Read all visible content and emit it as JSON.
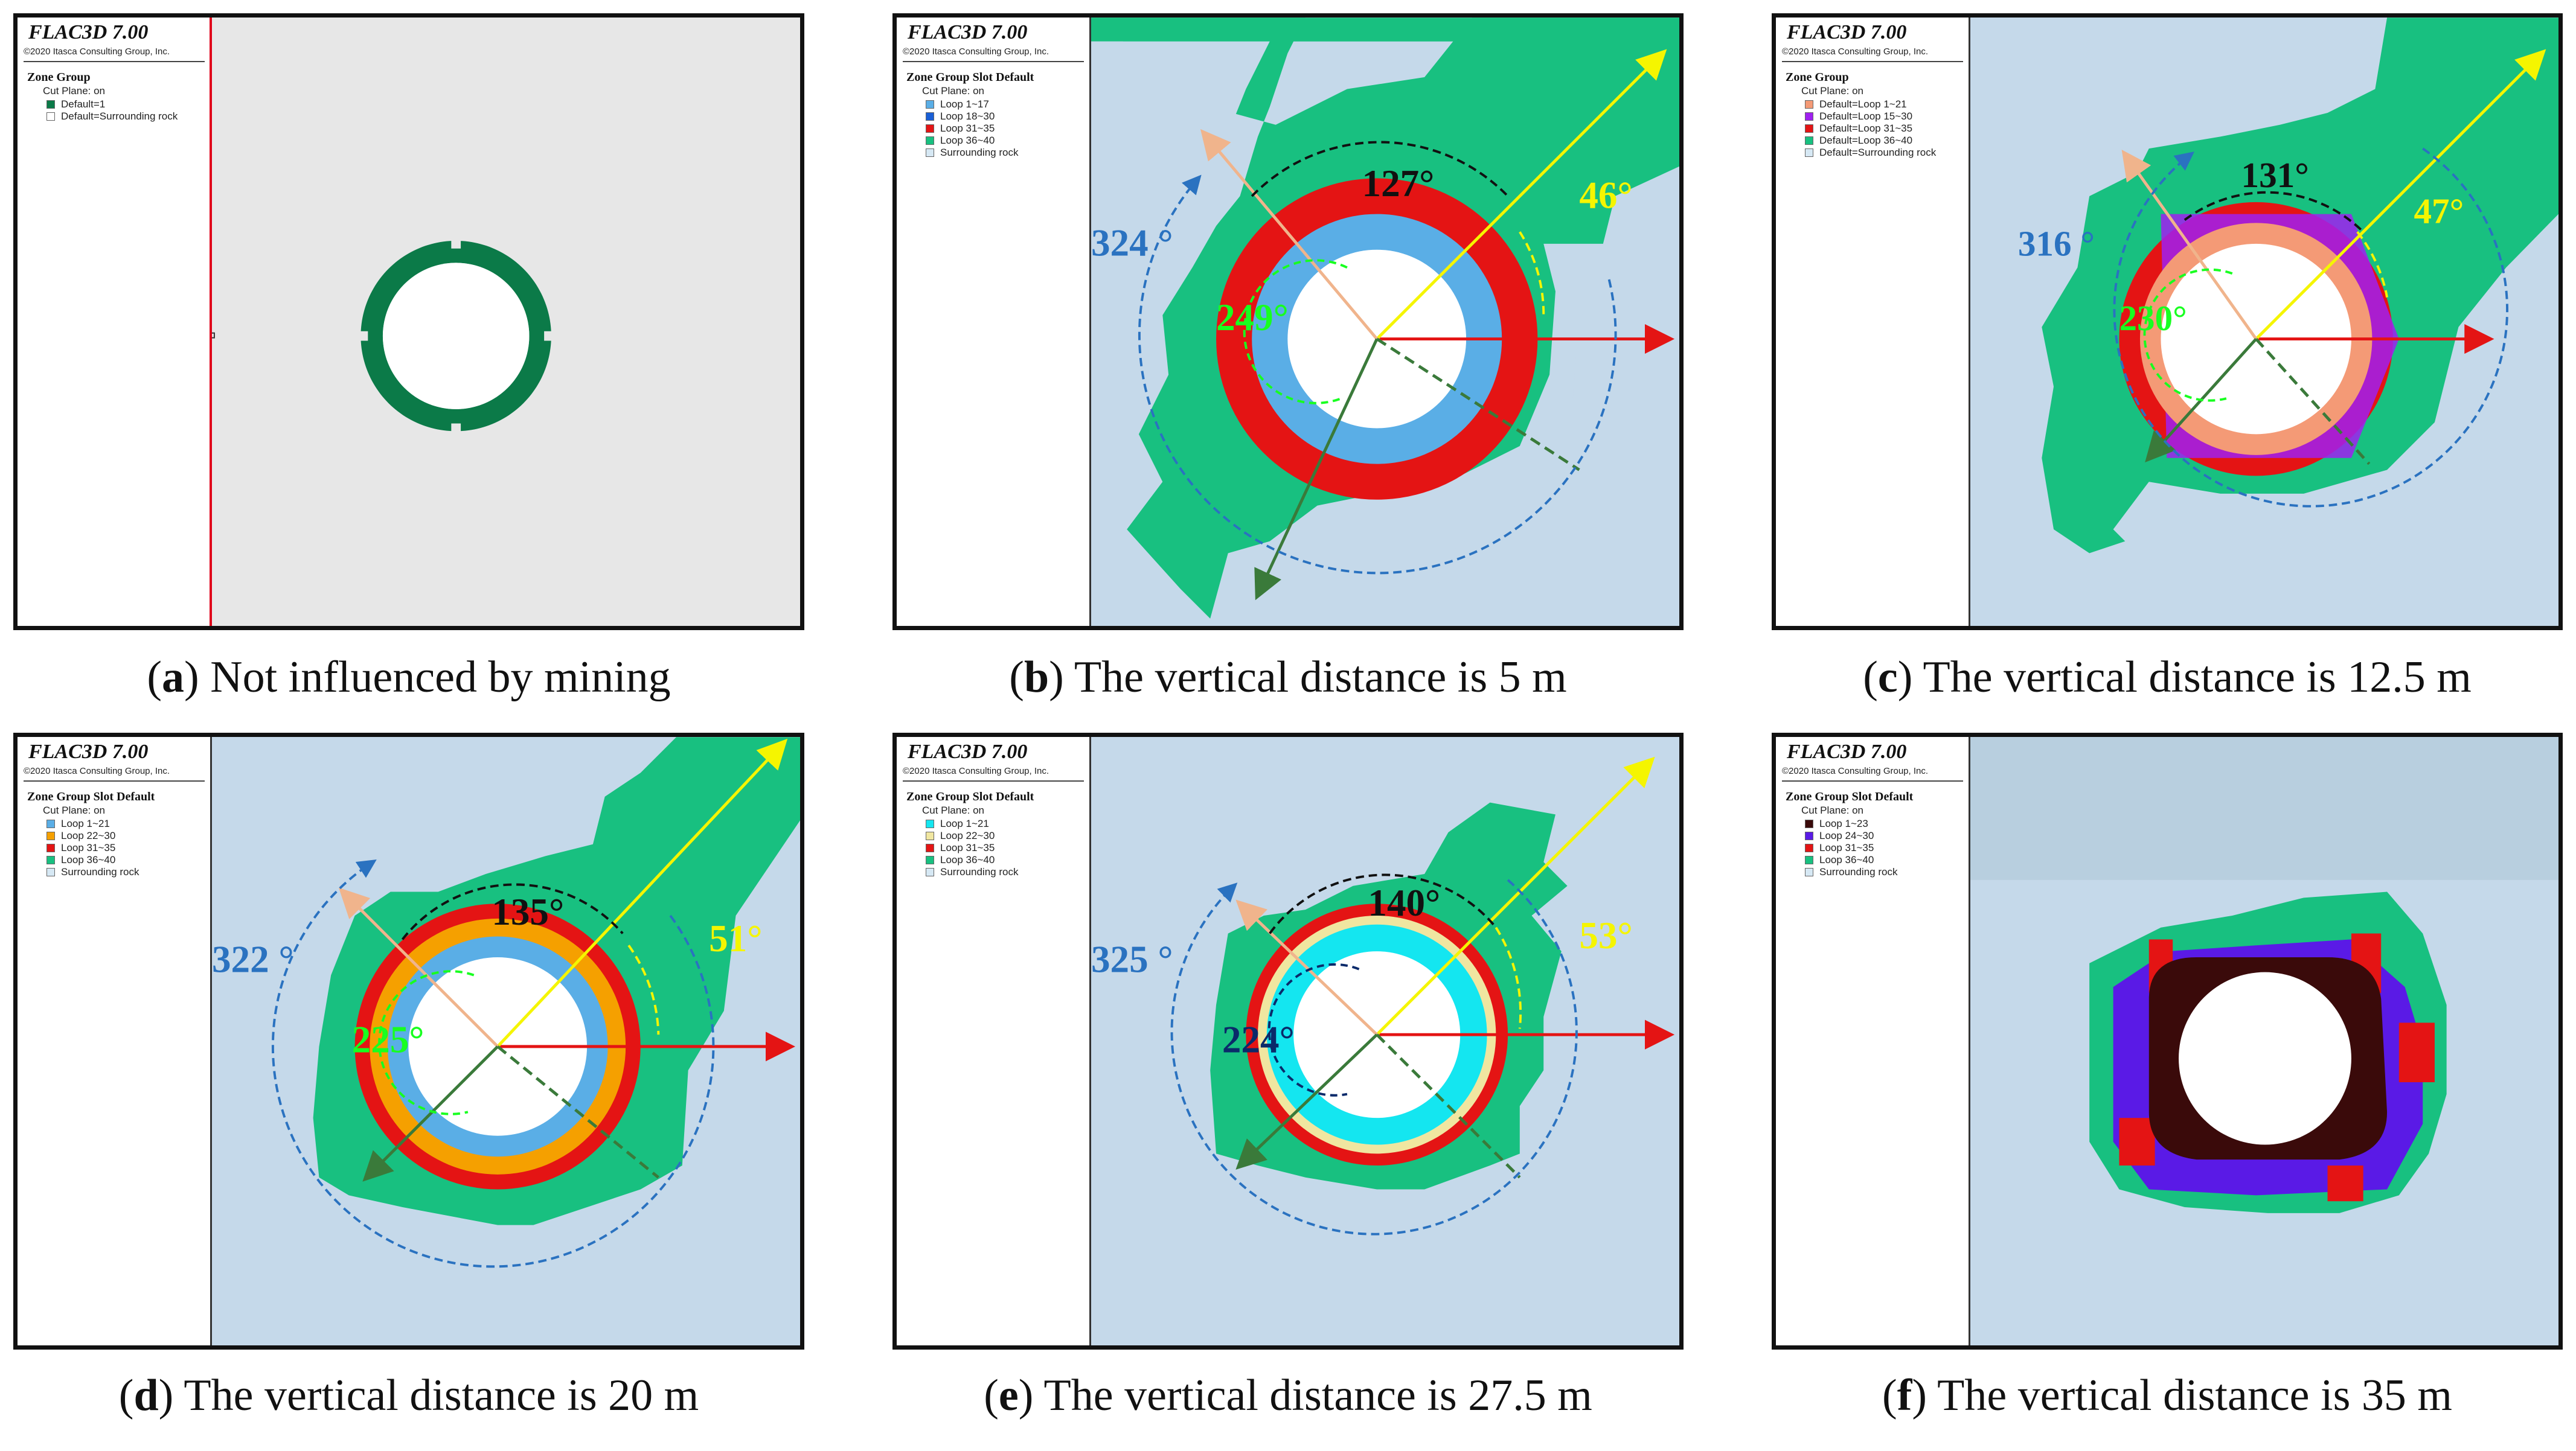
{
  "software": {
    "title": "FLAC3D 7.00",
    "copyright": "©2020 Itasca Consulting Group, Inc."
  },
  "colors": {
    "sea": "#c5d9ea",
    "green": "#18c080",
    "dark_green": "#0b7a48",
    "red": "#e41414",
    "yellow": "#f5f500",
    "ray_pink": "#f0b48c",
    "ray_green": "#3a7a3a",
    "blue_dash": "#2a72c0",
    "black": "#111111"
  },
  "panels": [
    {
      "id": "a",
      "letter": "a",
      "caption": "Not influenced by mining",
      "legend_title": "Zone Group",
      "cut_plane": "Cut Plane: on",
      "items": [
        {
          "label": "Default=1",
          "color": "#0b7a48"
        },
        {
          "label": "Default=Surrounding rock",
          "color": "#ffffff"
        }
      ],
      "angles": null
    },
    {
      "id": "b",
      "letter": "b",
      "caption": "The vertical distance is 5 m",
      "legend_title": "Zone Group Slot Default",
      "cut_plane": "Cut Plane: on",
      "items": [
        {
          "label": "Loop 1~17",
          "color": "#5aaee6"
        },
        {
          "label": "Loop 18~30",
          "color": "#1a5fd6"
        },
        {
          "label": "Loop 31~35",
          "color": "#e41414"
        },
        {
          "label": "Loop 36~40",
          "color": "#18c080"
        },
        {
          "label": "Surrounding rock",
          "color": "#d6e8f4"
        }
      ],
      "angles": {
        "top": "127°",
        "left": "324 °",
        "right": "46°",
        "inner": "249°"
      }
    },
    {
      "id": "c",
      "letter": "c",
      "caption": "The vertical distance is 12.5 m",
      "legend_title": "Zone Group",
      "cut_plane": "Cut Plane: on",
      "items": [
        {
          "label": "Default=Loop 1~21",
          "color": "#f49a76"
        },
        {
          "label": "Default=Loop 15~30",
          "color": "#a020f0"
        },
        {
          "label": "Default=Loop 31~35",
          "color": "#e41414"
        },
        {
          "label": "Default=Loop 36~40",
          "color": "#18c080"
        },
        {
          "label": "Default=Surrounding rock",
          "color": "#d6e8f4"
        }
      ],
      "angles": {
        "top": "131°",
        "left": "316 °",
        "right": "47°",
        "inner": "230°"
      }
    },
    {
      "id": "d",
      "letter": "d",
      "caption": "The vertical distance is 20 m",
      "legend_title": "Zone Group Slot Default",
      "cut_plane": "Cut Plane: on",
      "items": [
        {
          "label": "Loop 1~21",
          "color": "#5aaee6"
        },
        {
          "label": "Loop 22~30",
          "color": "#f5a000"
        },
        {
          "label": "Loop 31~35",
          "color": "#e41414"
        },
        {
          "label": "Loop 36~40",
          "color": "#18c080"
        },
        {
          "label": "Surrounding rock",
          "color": "#d6e8f4"
        }
      ],
      "angles": {
        "top": "135°",
        "left": "322 °",
        "right": "51°",
        "inner": "225°"
      }
    },
    {
      "id": "e",
      "letter": "e",
      "caption": "The vertical distance is 27.5 m",
      "legend_title": "Zone Group Slot Default",
      "cut_plane": "Cut Plane: on",
      "items": [
        {
          "label": "Loop 1~21",
          "color": "#14e6f0"
        },
        {
          "label": "Loop 22~30",
          "color": "#f0e6a0"
        },
        {
          "label": "Loop 31~35",
          "color": "#e41414"
        },
        {
          "label": "Loop 36~40",
          "color": "#18c080"
        },
        {
          "label": "Surrounding rock",
          "color": "#d6e8f4"
        }
      ],
      "angles": {
        "top": "140°",
        "left": "325 °",
        "right": "53°",
        "inner": "224°"
      }
    },
    {
      "id": "f",
      "letter": "f",
      "caption": "The vertical distance is 35 m",
      "legend_title": "Zone Group Slot Default",
      "cut_plane": "Cut Plane: on",
      "items": [
        {
          "label": "Loop 1~23",
          "color": "#3a0a0a"
        },
        {
          "label": "Loop 24~30",
          "color": "#5a1ae6"
        },
        {
          "label": "Loop 31~35",
          "color": "#e41414"
        },
        {
          "label": "Loop 36~40",
          "color": "#18c080"
        },
        {
          "label": "Surrounding rock",
          "color": "#d6e8f4"
        }
      ],
      "angles": null
    }
  ]
}
